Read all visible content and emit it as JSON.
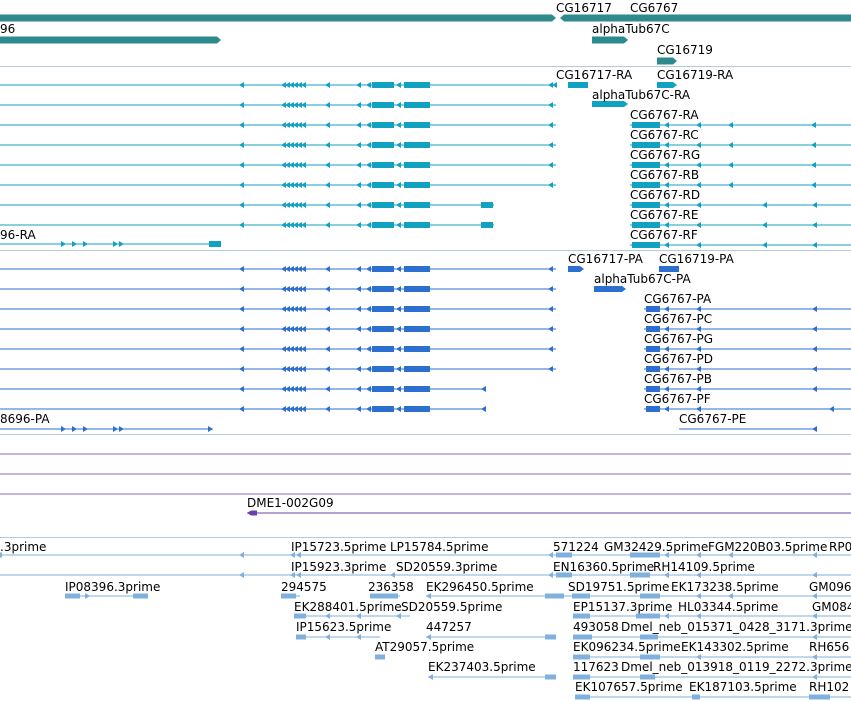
{
  "colors": {
    "gene": "#2f8a8e",
    "transcript": "#11a2c2",
    "protein": "#2d6fce",
    "clone": "#6b43a8",
    "est": "#7fb0de",
    "separator": "#b4ccd4"
  },
  "genes": {
    "labels": [
      "CG16717",
      "CG6767",
      "96",
      "alphaTub67C",
      "CG16719"
    ]
  },
  "transcripts": {
    "labels": [
      "CG16717-RA",
      "CG16719-RA",
      "alphaTub67C-RA",
      "CG6767-RA",
      "CG6767-RC",
      "CG6767-RG",
      "CG6767-RB",
      "CG6767-RD",
      "CG6767-RE",
      "CG6767-RF",
      "96-RA"
    ]
  },
  "proteins": {
    "labels": [
      "CG16717-PA",
      "CG16719-PA",
      "alphaTub67C-PA",
      "CG6767-PA",
      "CG6767-PC",
      "CG6767-PG",
      "CG6767-PD",
      "CG6767-PB",
      "CG6767-PF",
      "CG6767-PE",
      "8696-PA"
    ]
  },
  "clones": {
    "labels": [
      "DME1-002G09"
    ]
  },
  "ests": {
    "labels": [
      ".3prime",
      "IP15723.5prime",
      "LP15784.5prime",
      "571224",
      "GM32429.5prime",
      "FGM220B03.5prime",
      "RP0",
      "IP15923.3prime",
      "SD20559.3prime",
      "EN16360.5prime",
      "RH14109.5prime",
      "IP08396.3prime",
      "294575",
      "236358",
      "EK296450.5prime",
      "SD19751.5prime",
      "EK173238.5prime",
      "GM096",
      "EK288401.5prime",
      "SD20559.5prime",
      "EP15137.3prime",
      "HL03344.5prime",
      "GM084",
      "IP15623.5prime",
      "447257",
      "493058",
      "Dmel_neb_015371_0428_3171.3prime",
      "AT29057.5prime",
      "EK096234.5prime",
      "EK143302.5prime",
      "RH656",
      "EK237403.5prime",
      "117623",
      "Dmel_neb_013918_0119_2272.3prime",
      "EK107657.5prime",
      "EK187103.5prime",
      "RH102"
    ]
  }
}
